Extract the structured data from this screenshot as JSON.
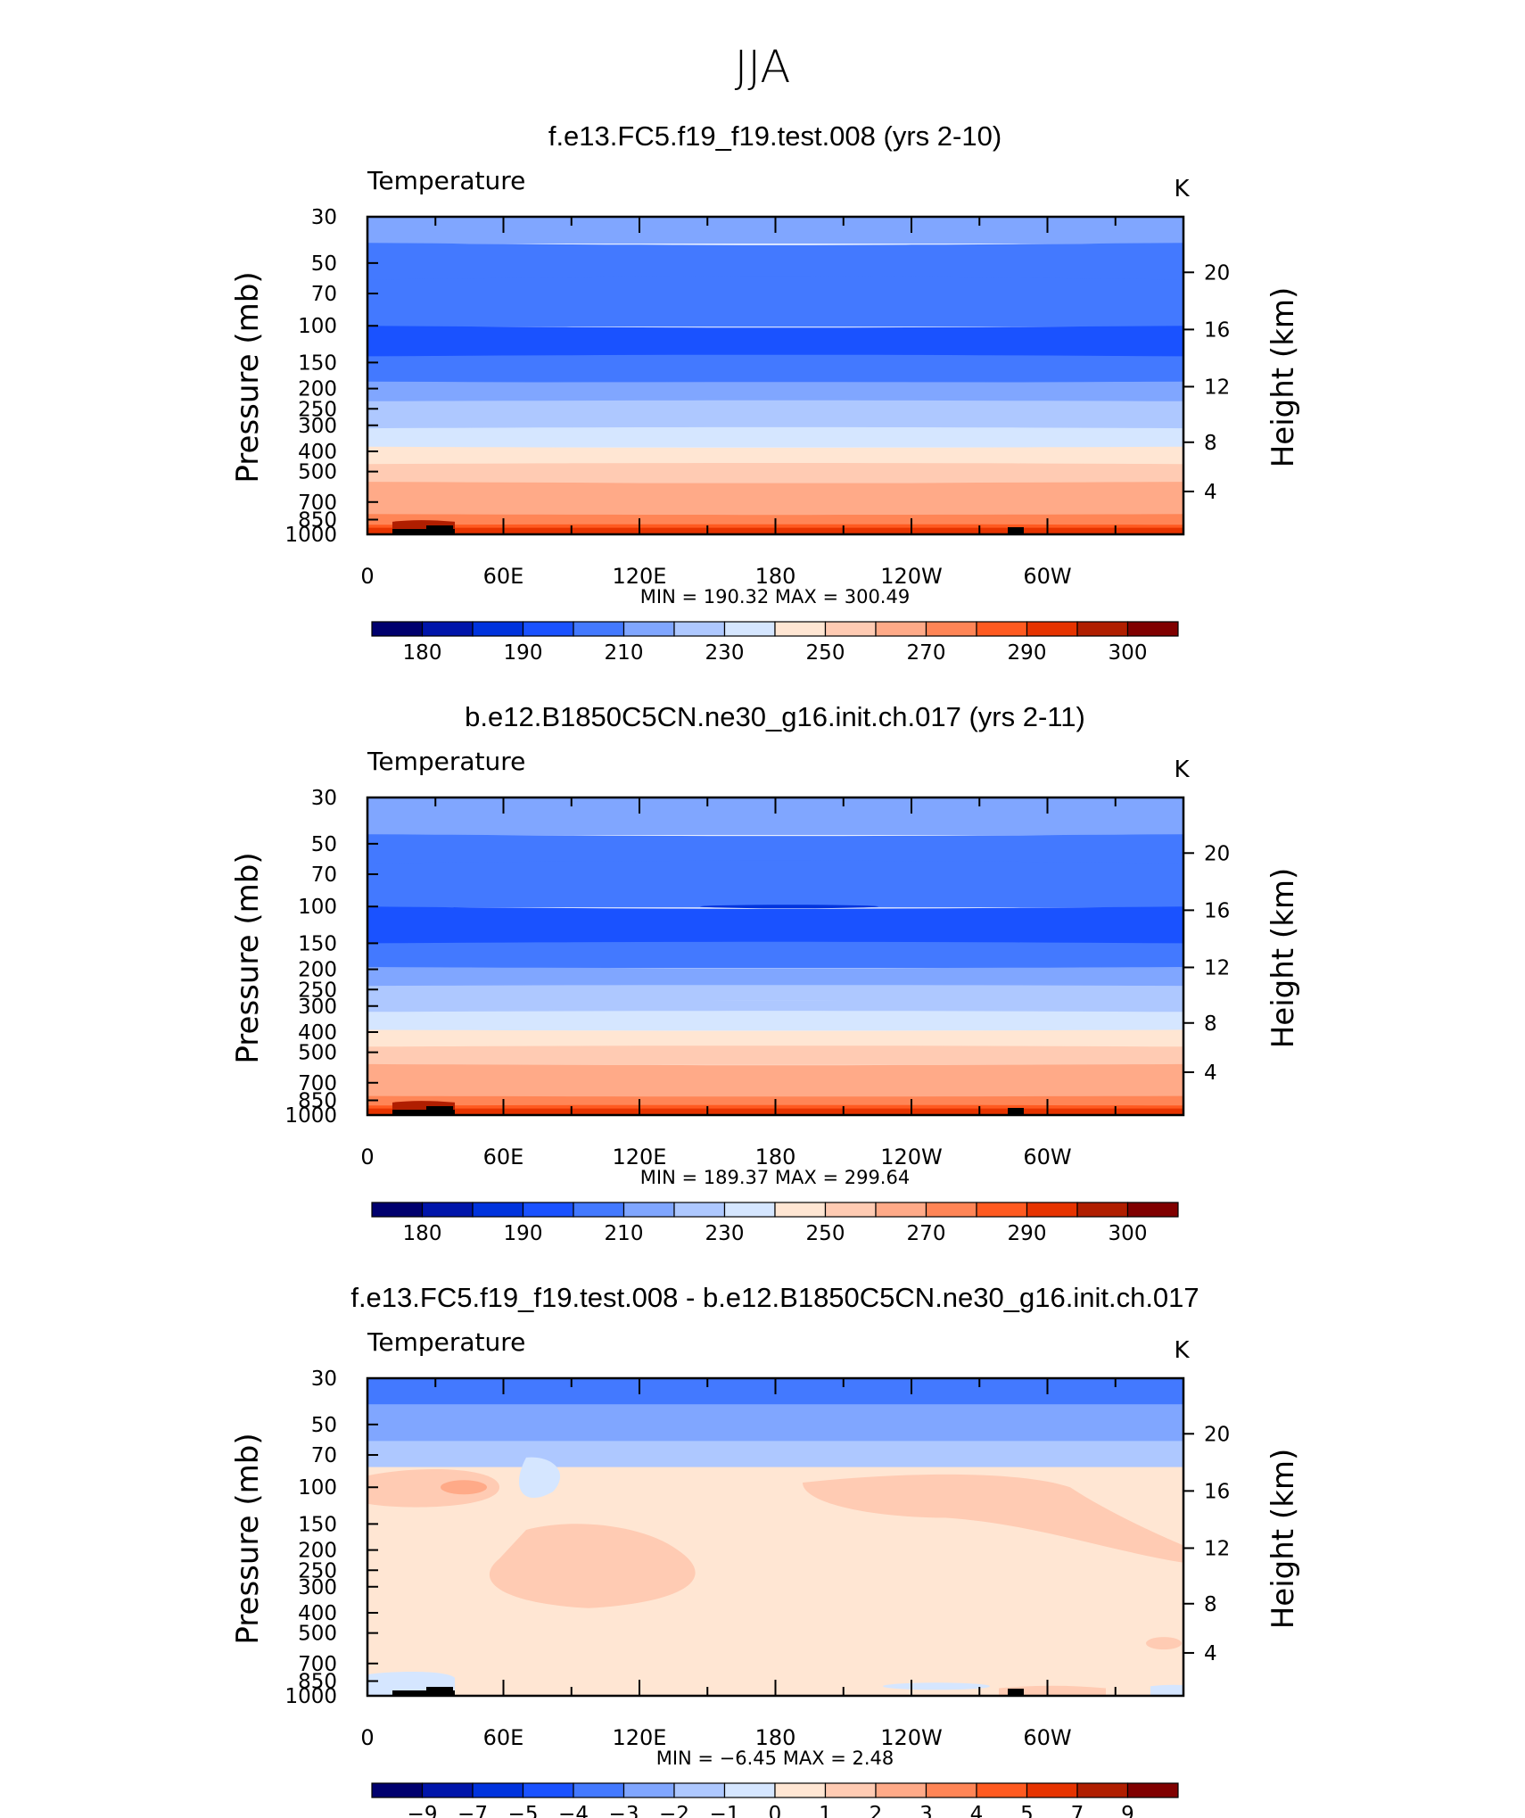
{
  "title": "JJA",
  "colors": {
    "abs": [
      "#00006e",
      "#0015aa",
      "#0033dd",
      "#1a52ff",
      "#4379ff",
      "#80a6ff",
      "#aec8ff",
      "#d5e6ff",
      "#ffe6d3",
      "#ffcbb3",
      "#ffaa88",
      "#ff8556",
      "#ff5a20",
      "#e63300",
      "#b01e00",
      "#800000"
    ],
    "diff": [
      "#00006e",
      "#0015aa",
      "#0033dd",
      "#1a52ff",
      "#4379ff",
      "#80a6ff",
      "#aec8ff",
      "#d5e6ff",
      "#ffe6d3",
      "#ffcbb3",
      "#ffaa88",
      "#ff8556",
      "#ff5a20",
      "#e63300",
      "#b01e00",
      "#800000"
    ]
  },
  "chart_data": [
    {
      "type": "heatmap",
      "title": "f.e13.FC5.f19_f19.test.008 (yrs 2-10)",
      "variable": "Temperature",
      "units": "K",
      "ylabel": "Pressure (mb)",
      "ylabel_right": "Height (km)",
      "yticks": [
        "30",
        "50",
        "70",
        "100",
        "150",
        "200",
        "250",
        "300",
        "400",
        "500",
        "700",
        "850",
        "1000"
      ],
      "yticks_right": [
        "20",
        "16",
        "12",
        "8",
        "4"
      ],
      "xticks": [
        "0",
        "60E",
        "120E",
        "180",
        "120W",
        "60W"
      ],
      "stats": "MIN  =  190.32   MAX  =  300.49",
      "colorbar_labels": [
        "180",
        "190",
        "210",
        "230",
        "250",
        "270",
        "290",
        "300"
      ],
      "bands": [
        {
          "p": 30,
          "value": 212
        },
        {
          "p": 40,
          "value": 208
        },
        {
          "p": 60,
          "value": 200
        },
        {
          "p": 100,
          "value": 196
        },
        {
          "p": 140,
          "value": 205
        },
        {
          "p": 185,
          "value": 212
        },
        {
          "p": 230,
          "value": 220
        },
        {
          "p": 270,
          "value": 228
        },
        {
          "p": 310,
          "value": 236
        },
        {
          "p": 380,
          "value": 244
        },
        {
          "p": 460,
          "value": 252
        },
        {
          "p": 560,
          "value": 260
        },
        {
          "p": 680,
          "value": 268
        },
        {
          "p": 800,
          "value": 276
        },
        {
          "p": 900,
          "value": 284
        }
      ]
    },
    {
      "type": "heatmap",
      "title": "b.e12.B1850C5CN.ne30_g16.init.ch.017 (yrs 2-11)",
      "variable": "Temperature",
      "units": "K",
      "ylabel": "Pressure (mb)",
      "ylabel_right": "Height (km)",
      "yticks": [
        "30",
        "50",
        "70",
        "100",
        "150",
        "200",
        "250",
        "300",
        "400",
        "500",
        "700",
        "850",
        "1000"
      ],
      "yticks_right": [
        "20",
        "16",
        "12",
        "8",
        "4"
      ],
      "xticks": [
        "0",
        "60E",
        "120E",
        "180",
        "120W",
        "60W"
      ],
      "stats": "MIN  =  189.37   MAX  =  299.64",
      "colorbar_labels": [
        "180",
        "190",
        "210",
        "230",
        "250",
        "270",
        "290",
        "300"
      ],
      "bands": [
        {
          "p": 30,
          "value": 212
        },
        {
          "p": 45,
          "value": 208
        },
        {
          "p": 62,
          "value": 200
        },
        {
          "p": 100,
          "value": 196
        },
        {
          "p": 150,
          "value": 205
        },
        {
          "p": 195,
          "value": 212
        },
        {
          "p": 240,
          "value": 220
        },
        {
          "p": 280,
          "value": 228
        },
        {
          "p": 320,
          "value": 236
        },
        {
          "p": 390,
          "value": 244
        },
        {
          "p": 470,
          "value": 252
        },
        {
          "p": 570,
          "value": 260
        },
        {
          "p": 690,
          "value": 268
        },
        {
          "p": 810,
          "value": 276
        },
        {
          "p": 900,
          "value": 284
        }
      ]
    },
    {
      "type": "heatmap",
      "title": "f.e13.FC5.f19_f19.test.008 - b.e12.B1850C5CN.ne30_g16.init.ch.017",
      "variable": "Temperature",
      "units": "K",
      "ylabel": "Pressure (mb)",
      "ylabel_right": "Height (km)",
      "yticks": [
        "30",
        "50",
        "70",
        "100",
        "150",
        "200",
        "250",
        "300",
        "400",
        "500",
        "700",
        "850",
        "1000"
      ],
      "yticks_right": [
        "20",
        "16",
        "12",
        "8",
        "4"
      ],
      "xticks": [
        "0",
        "60E",
        "120E",
        "180",
        "120W",
        "60W"
      ],
      "stats": "MIN  =    −6.45   MAX  =     2.48",
      "colorbar_labels": [
        "−9",
        "−7",
        "−5",
        "−4",
        "−3",
        "−2",
        "−1",
        "0",
        "1",
        "2",
        "3",
        "4",
        "5",
        "7",
        "9"
      ],
      "bands": [
        {
          "p": 30,
          "value": -3.5
        },
        {
          "p": 40,
          "value": -2.5
        },
        {
          "p": 60,
          "value": -1.5
        },
        {
          "p": 80,
          "value": 0.5
        }
      ]
    }
  ]
}
